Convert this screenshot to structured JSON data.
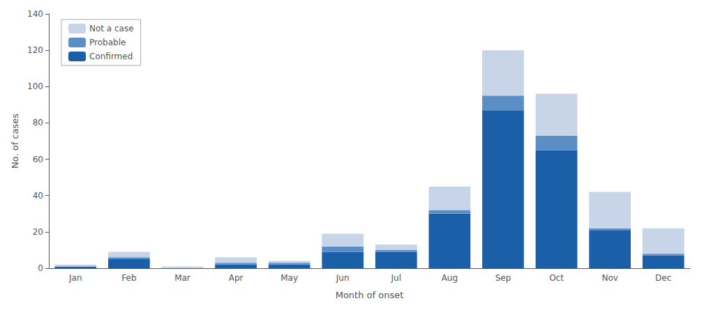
{
  "chart_data": {
    "type": "bar",
    "stacked": true,
    "xlabel": "Month of onset",
    "ylabel": "No. of cases",
    "categories": [
      "Jan",
      "Feb",
      "Mar",
      "Apr",
      "May",
      "Jun",
      "Jul",
      "Aug",
      "Sep",
      "Oct",
      "Nov",
      "Dec"
    ],
    "series": [
      {
        "name": "Confirmed",
        "color": "#1a5fa8",
        "values": [
          1,
          5,
          0,
          2,
          2,
          9,
          9,
          30,
          87,
          65,
          21,
          7
        ]
      },
      {
        "name": "Probable",
        "color": "#5b8ec4",
        "values": [
          0,
          1,
          0,
          1,
          1,
          3,
          1,
          2,
          8,
          8,
          1,
          1
        ]
      },
      {
        "name": "Not a case",
        "color": "#c8d4e8",
        "values": [
          1,
          3,
          1,
          3,
          1,
          7,
          3,
          13,
          25,
          23,
          20,
          14
        ]
      }
    ],
    "ylim": [
      0,
      140
    ],
    "yticks": [
      0,
      20,
      40,
      60,
      80,
      100,
      120,
      140
    ],
    "grid": false,
    "legend": "upper left"
  }
}
